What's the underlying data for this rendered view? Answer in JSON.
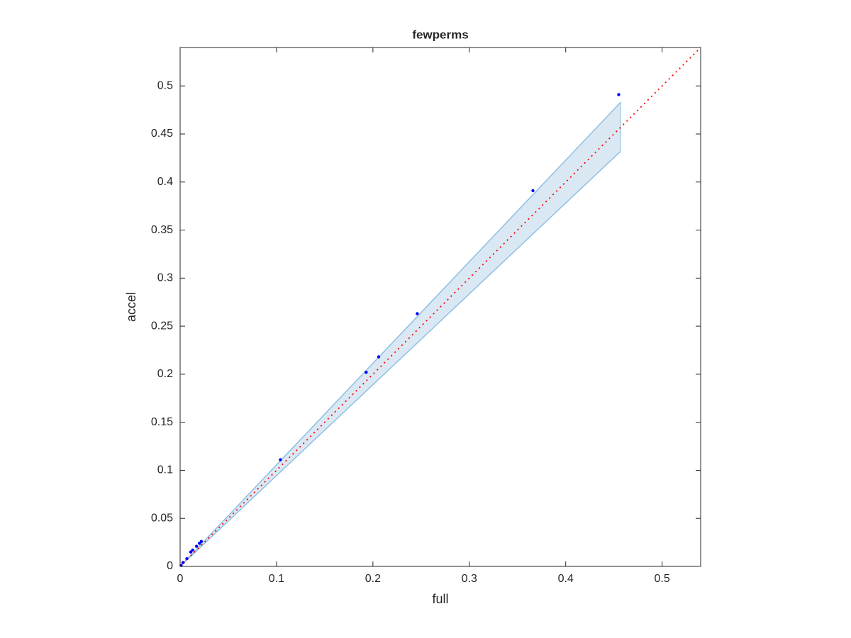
{
  "chart_data": {
    "type": "scatter",
    "title": "fewperms",
    "xlabel": "full",
    "ylabel": "accel",
    "x": [
      0.455,
      0.366,
      0.246,
      0.206,
      0.193,
      0.104,
      0.022,
      0.02,
      0.017,
      0.013,
      0.011,
      0.007,
      0.003,
      0.001
    ],
    "series": [
      {
        "color": "#0000ff",
        "values": [
          0.491,
          0.391,
          0.263,
          0.218,
          0.202,
          0.111,
          0.026,
          0.024,
          0.021,
          0.017,
          0.015,
          0.008,
          0.004,
          0.001
        ]
      }
    ],
    "band": {
      "x": [
        0,
        0.457
      ],
      "upper": [
        0,
        0.483
      ],
      "lower": [
        0,
        0.432
      ],
      "color": "#8ec0e3",
      "fill": "#dae8f4"
    },
    "reference_line": {
      "x": [
        0,
        0.54
      ],
      "y": [
        0,
        0.54
      ],
      "color": "#ff0000"
    },
    "xlim": [
      0,
      0.54
    ],
    "ylim": [
      0,
      0.54
    ],
    "xticks": [
      0,
      0.1,
      0.2,
      0.3,
      0.4,
      0.5
    ],
    "yticks": [
      0,
      0.05,
      0.1,
      0.15,
      0.2,
      0.25,
      0.3,
      0.35,
      0.4,
      0.45,
      0.5
    ]
  }
}
